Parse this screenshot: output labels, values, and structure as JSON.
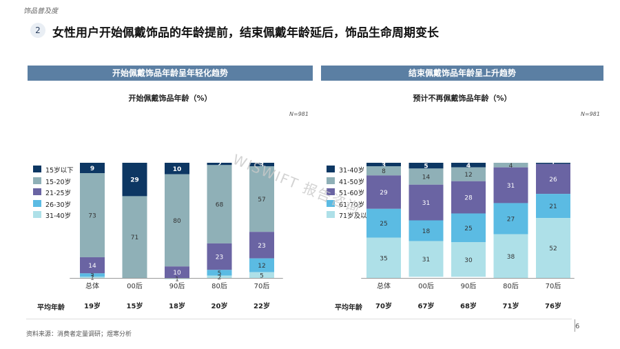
{
  "header": {
    "top_tag": "饰品普及度",
    "section_number": "2",
    "headline": "女性用户开始佩戴饰品的年龄提前，结束佩戴年龄延后，饰品生命周期变长"
  },
  "watermark": "WISWIFT 报告咨询",
  "colors": {
    "panel_bar": "#5b7fa3",
    "series": [
      "#0d3763",
      "#8fb0b7",
      "#6a64a3",
      "#5bbbe3",
      "#aee0e8"
    ]
  },
  "avg_row_label": "平均年龄",
  "footer": {
    "source": "资料来源：消费者定量调研；煜寒分析",
    "page": "6"
  },
  "chart_data": [
    {
      "type": "bar",
      "stacked": true,
      "percent": true,
      "panel_title": "开始佩戴饰品年龄呈年轻化趋势",
      "title": "开始佩戴饰品年龄（%）",
      "note": "N=981",
      "categories": [
        "总体",
        "00后",
        "90后",
        "80后",
        "70后"
      ],
      "series": [
        {
          "name": "15岁以下",
          "values": [
            9,
            29,
            10,
            2,
            3
          ]
        },
        {
          "name": "15-20岁",
          "values": [
            73,
            71,
            80,
            68,
            57
          ]
        },
        {
          "name": "21-25岁",
          "values": [
            14,
            0,
            10,
            23,
            23
          ]
        },
        {
          "name": "26-30岁",
          "values": [
            3,
            0,
            0,
            5,
            12
          ]
        },
        {
          "name": "31-40岁",
          "values": [
            1,
            0,
            1,
            2,
            5
          ]
        }
      ],
      "avg_age": [
        "19岁",
        "15岁",
        "18岁",
        "20岁",
        "22岁"
      ],
      "legend_position": "left",
      "ylim": [
        0,
        100
      ]
    },
    {
      "type": "bar",
      "stacked": true,
      "percent": true,
      "panel_title": "结束佩戴饰品年龄呈上升趋势",
      "title": "预计不再佩戴饰品年龄（%）",
      "note": "N=981",
      "categories": [
        "总体",
        "00后",
        "90后",
        "80后",
        "70后"
      ],
      "series": [
        {
          "name": "31-40岁",
          "values": [
            3,
            5,
            4,
            0,
            1
          ]
        },
        {
          "name": "41-50岁",
          "values": [
            8,
            14,
            12,
            4,
            0
          ]
        },
        {
          "name": "51-60岁",
          "values": [
            29,
            31,
            28,
            31,
            26
          ]
        },
        {
          "name": "61-70岁",
          "values": [
            25,
            18,
            25,
            27,
            21
          ]
        },
        {
          "name": "71岁及以上",
          "values": [
            35,
            31,
            30,
            38,
            52
          ]
        }
      ],
      "avg_age": [
        "70岁",
        "67岁",
        "68岁",
        "71岁",
        "76岁"
      ],
      "legend_position": "left",
      "ylim": [
        0,
        100
      ]
    }
  ]
}
